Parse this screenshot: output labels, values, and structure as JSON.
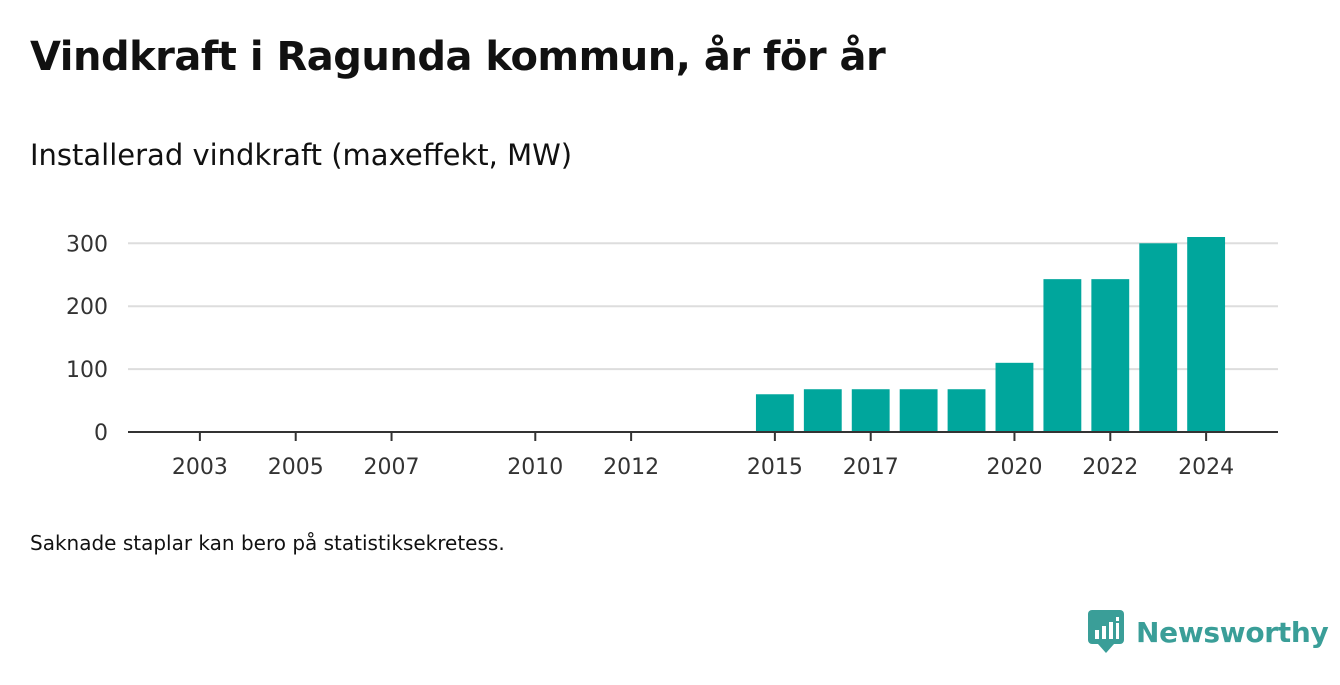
{
  "header": {
    "title": "Vindkraft i Ragunda kommun, år för år",
    "subtitle": "Installerad vindkraft (maxeffekt, MW)"
  },
  "footer": {
    "note": "Saknade staplar kan bero på statistiksekretess.",
    "brand_name": "Newsworthy",
    "brand_icon": "newsworthy-logo-icon"
  },
  "colors": {
    "bar": "#00a69c",
    "grid": "#dddddd",
    "axis": "#333333",
    "brand": "#3a9e98"
  },
  "chart_data": {
    "type": "bar",
    "title": "",
    "xlabel": "",
    "ylabel": "",
    "x": [
      2015,
      2016,
      2017,
      2018,
      2019,
      2020,
      2021,
      2022,
      2023,
      2024
    ],
    "values": [
      60,
      68,
      68,
      68,
      68,
      110,
      243,
      243,
      300,
      310
    ],
    "x_range": [
      2001.5,
      2025.5
    ],
    "ylim": [
      0,
      310
    ],
    "yticks": [
      0,
      100,
      200,
      300
    ],
    "xticks": [
      2003,
      2005,
      2007,
      2010,
      2012,
      2015,
      2017,
      2020,
      2022,
      2024
    ],
    "grid": true,
    "legend": "none"
  }
}
